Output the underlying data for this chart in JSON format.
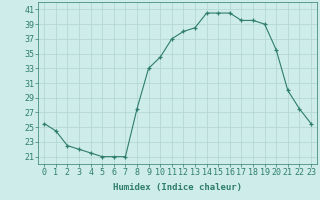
{
  "x": [
    0,
    1,
    2,
    3,
    4,
    5,
    6,
    7,
    8,
    9,
    10,
    11,
    12,
    13,
    14,
    15,
    16,
    17,
    18,
    19,
    20,
    21,
    22,
    23
  ],
  "y": [
    25.5,
    24.5,
    22.5,
    22,
    21.5,
    21,
    21,
    21,
    27.5,
    33,
    34.5,
    37,
    38,
    38.5,
    40.5,
    40.5,
    40.5,
    39.5,
    39.5,
    39,
    35.5,
    30,
    27.5,
    25.5
  ],
  "line_color": "#2e7d6e",
  "marker": "+",
  "marker_size": 3,
  "bg_color": "#ceecea",
  "grid_color": "#b0d4d0",
  "xlabel": "Humidex (Indice chaleur)",
  "xlim": [
    -0.5,
    23.5
  ],
  "ylim": [
    20.0,
    42.0
  ],
  "yticks": [
    21,
    23,
    25,
    27,
    29,
    31,
    33,
    35,
    37,
    39,
    41
  ],
  "xticks": [
    0,
    1,
    2,
    3,
    4,
    5,
    6,
    7,
    8,
    9,
    10,
    11,
    12,
    13,
    14,
    15,
    16,
    17,
    18,
    19,
    20,
    21,
    22,
    23
  ],
  "label_fontsize": 6.5,
  "tick_fontsize": 6.0
}
